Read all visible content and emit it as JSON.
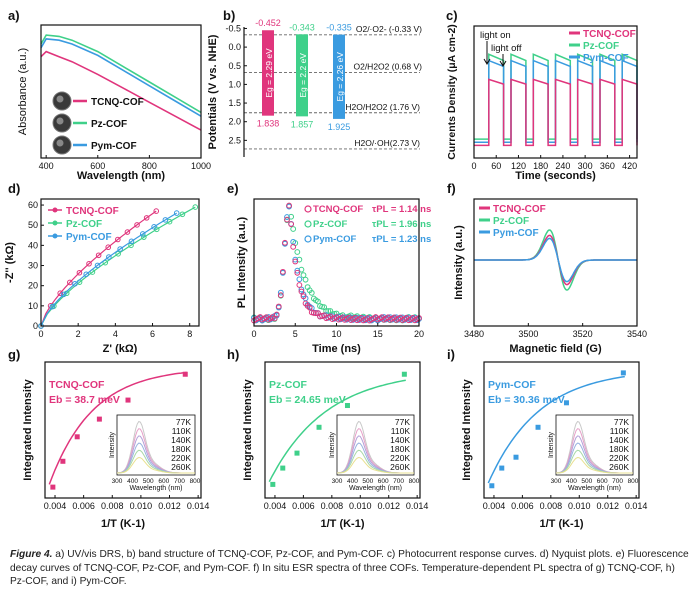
{
  "colors": {
    "tcnq": "#e0357c",
    "pz": "#3fd08a",
    "pym": "#3a9be0",
    "dash": "#666666"
  },
  "caption": {
    "label": "Figure 4.",
    "text": " a) UV/vis DRS, b) band structure of TCNQ-COF, Pz-COF, and Pym-COF. c) Photocurrent response curves. d) Nyquist plots. e) Fluorescence decay curves of TCNQ-COF, Pz-COF, and Pym-COF. f) In situ ESR spectra of three COFs. Temperature-dependent PL spectra of g) TCNQ-COF, h) Pz-COF, and i) Pym-COF."
  },
  "chart_data": [
    {
      "id": "a",
      "panel_label": "a)",
      "type": "line",
      "xlabel": "Wavelength (nm)",
      "ylabel": "Absorbance (a.u.)",
      "xlim": [
        380,
        1000
      ],
      "xticks": [
        400,
        600,
        800,
        1000
      ],
      "legend": [
        "TCNQ-COF",
        "Pz-COF",
        "Pym-COF"
      ],
      "series": [
        {
          "name": "Pz-COF",
          "x": [
            380,
            400,
            450,
            500,
            600,
            700,
            800,
            900,
            1000
          ],
          "y": [
            0.9,
            0.97,
            0.96,
            0.93,
            0.84,
            0.72,
            0.6,
            0.48,
            0.36
          ]
        },
        {
          "name": "Pym-COF",
          "x": [
            380,
            400,
            450,
            500,
            600,
            700,
            800,
            900,
            1000
          ],
          "y": [
            0.87,
            0.94,
            0.93,
            0.9,
            0.81,
            0.69,
            0.57,
            0.45,
            0.33
          ]
        },
        {
          "name": "TCNQ-COF",
          "x": [
            380,
            400,
            450,
            500,
            600,
            700,
            800,
            900,
            1000
          ],
          "y": [
            0.8,
            0.84,
            0.8,
            0.76,
            0.66,
            0.55,
            0.44,
            0.33,
            0.22
          ]
        }
      ]
    },
    {
      "id": "b",
      "panel_label": "b)",
      "type": "bar",
      "ylabel": "Potentials (V vs. NHE)",
      "ylim": [
        -0.7,
        3.0
      ],
      "yticks": [
        "-0.5",
        "0.0",
        "0.5",
        "1.0",
        "1.5",
        "2.0",
        "2.5"
      ],
      "bands": [
        {
          "name": "TCNQ-COF",
          "cb": "-0.452",
          "vb": "1.838",
          "cb_value": -0.452,
          "vb_value": 1.838,
          "eg": "Eg = 2.29 eV"
        },
        {
          "name": "Pz-COF",
          "cb": "-0.343",
          "vb": "1.857",
          "cb_value": -0.343,
          "vb_value": 1.857,
          "eg": "Eg = 2.2 eV"
        },
        {
          "name": "Pym-COF",
          "cb": "-0.335",
          "vb": "1.925",
          "cb_value": -0.335,
          "vb_value": 1.925,
          "eg": "Eg = 2.26 eV"
        }
      ],
      "references": [
        {
          "label": "O2/·O2- (-0.33 V)",
          "value": -0.33
        },
        {
          "label": "O2/H2O2 (0.68 V)",
          "value": 0.68
        },
        {
          "label": "H2O/H2O2 (1.76 V)",
          "value": 1.76
        },
        {
          "label": "H2O/·OH(2.73 V)",
          "value": 2.73
        }
      ]
    },
    {
      "id": "c",
      "panel_label": "c)",
      "type": "line",
      "xlabel": "Time (seconds)",
      "ylabel": "Currents Density (μA cm-2)",
      "xlim": [
        0,
        440
      ],
      "xticks": [
        0,
        60,
        120,
        180,
        240,
        300,
        360,
        420
      ],
      "ylim": [
        0,
        0.42
      ],
      "annotations": [
        "light on",
        "light off"
      ],
      "legend": [
        "TCNQ-COF",
        "Pz-COF",
        "Pym-COF"
      ],
      "on_periods": [
        [
          40,
          80
        ],
        [
          100,
          140
        ],
        [
          160,
          200
        ],
        [
          220,
          260
        ],
        [
          280,
          320
        ],
        [
          340,
          380
        ],
        [
          400,
          440
        ]
      ],
      "series": [
        {
          "name": "Pz-COF",
          "on": 0.33,
          "off": 0.06
        },
        {
          "name": "Pym-COF",
          "on": 0.31,
          "off": 0.05
        },
        {
          "name": "TCNQ-COF",
          "on": 0.25,
          "off": 0.04
        }
      ]
    },
    {
      "id": "d",
      "panel_label": "d)",
      "type": "scatter",
      "xlabel": "Z' (kΩ)",
      "ylabel": "-Z'' (kΩ)",
      "xlim": [
        0,
        8.5
      ],
      "ylim": [
        0,
        63
      ],
      "xticks": [
        0,
        2,
        4,
        6,
        8
      ],
      "yticks": [
        0,
        10,
        20,
        30,
        40,
        50,
        60
      ],
      "legend": [
        "TCNQ-COF",
        "Pz-COF",
        "Pym-COF"
      ],
      "series": [
        {
          "name": "TCNQ-COF",
          "xmax": 6.2,
          "ymax": 57,
          "k": 0.7
        },
        {
          "name": "Pz-COF",
          "xmax": 8.3,
          "ymax": 59,
          "k": 0.72
        },
        {
          "name": "Pym-COF",
          "xmax": 7.3,
          "ymax": 56,
          "k": 0.71
        }
      ]
    },
    {
      "id": "e",
      "panel_label": "e)",
      "type": "scatter",
      "xlabel": "Time (ns)",
      "ylabel": "PL Intensity (a.u.)",
      "xlim": [
        0,
        20
      ],
      "xticks": [
        0,
        5,
        10,
        15,
        20
      ],
      "legend": [
        {
          "name": "TCNQ-COF",
          "tau": "τPL = 1.14 ns",
          "value": 1.14
        },
        {
          "name": "Pz-COF",
          "tau": "τPL = 1.96 ns",
          "value": 1.96
        },
        {
          "name": "Pym-COF",
          "tau": "τPL = 1.23 ns",
          "value": 1.23
        }
      ]
    },
    {
      "id": "f",
      "panel_label": "f)",
      "type": "line",
      "xlabel": "Magnetic field (G)",
      "ylabel": "Intensity (a.u.)",
      "xlim": [
        3480,
        3540
      ],
      "xticks": [
        3480,
        3500,
        3520,
        3540
      ],
      "legend": [
        "TCNQ-COF",
        "Pz-COF",
        "Pym-COF"
      ],
      "center": 3511,
      "series": [
        {
          "name": "Pz-COF",
          "amplitude": 1.0
        },
        {
          "name": "TCNQ-COF",
          "amplitude": 0.82
        },
        {
          "name": "Pym-COF",
          "amplitude": 0.72
        }
      ]
    },
    {
      "id": "g",
      "panel_label": "g)",
      "type": "scatter",
      "sample": "TCNQ-COF",
      "eb": "Eb = 38.7 meV",
      "eb_value": 38.7,
      "xlabel": "1/T (K-1)",
      "ylabel": "Integrated Intensity",
      "xlim": [
        0.0033,
        0.0142
      ],
      "xticks": [
        "0.004",
        "0.006",
        "0.008",
        "0.010",
        "0.012",
        "0.014"
      ],
      "points": [
        {
          "x": 0.00385,
          "y": 0.08
        },
        {
          "x": 0.00455,
          "y": 0.27
        },
        {
          "x": 0.00555,
          "y": 0.45
        },
        {
          "x": 0.0071,
          "y": 0.58
        },
        {
          "x": 0.0091,
          "y": 0.72
        },
        {
          "x": 0.0131,
          "y": 0.91
        }
      ],
      "fit": {
        "a": 0.1,
        "b": 0.86,
        "k": 330
      },
      "inset": {
        "xlabel": "Wavelength (nm)",
        "ylabel": "Intensity",
        "xticks": [
          "300",
          "400",
          "500",
          "600",
          "700",
          "800"
        ],
        "temps": [
          "77K",
          "110K",
          "140K",
          "180K",
          "220K",
          "260K"
        ],
        "colors": [
          "#c9c9c9",
          "#e6a0c8",
          "#b4a0d8",
          "#98b4e0",
          "#a8d8a8",
          "#e8e090"
        ]
      }
    },
    {
      "id": "h",
      "panel_label": "h)",
      "type": "scatter",
      "sample": "Pz-COF",
      "eb": "Eb = 24.65 meV",
      "eb_value": 24.65,
      "xlabel": "1/T (K-1)",
      "ylabel": "Integrated Intensity",
      "xlim": [
        0.0033,
        0.0142
      ],
      "xticks": [
        "0.004",
        "0.006",
        "0.008",
        "0.010",
        "0.012",
        "0.014"
      ],
      "points": [
        {
          "x": 0.00385,
          "y": 0.1
        },
        {
          "x": 0.00455,
          "y": 0.22
        },
        {
          "x": 0.00555,
          "y": 0.33
        },
        {
          "x": 0.0071,
          "y": 0.52
        },
        {
          "x": 0.0091,
          "y": 0.68
        },
        {
          "x": 0.0131,
          "y": 0.91
        }
      ],
      "fit": {
        "a": 0.12,
        "b": 0.82,
        "k": 250
      },
      "inset": {
        "xlabel": "Wavelength (nm)",
        "ylabel": "Intensity",
        "xticks": [
          "300",
          "400",
          "500",
          "600",
          "700",
          "800"
        ],
        "temps": [
          "77K",
          "110K",
          "140K",
          "180K",
          "220K",
          "260K"
        ],
        "colors": [
          "#c9c9c9",
          "#e6a0c8",
          "#b4a0d8",
          "#98b4e0",
          "#a8d8a8",
          "#e8e090"
        ]
      }
    },
    {
      "id": "i",
      "panel_label": "i)",
      "type": "scatter",
      "sample": "Pym-COF",
      "eb": "Eb = 30.36 meV",
      "eb_value": 30.36,
      "xlabel": "1/T (K-1)",
      "ylabel": "Integrated Intensity",
      "xlim": [
        0.0033,
        0.0142
      ],
      "xticks": [
        "0.004",
        "0.006",
        "0.008",
        "0.010",
        "0.012",
        "0.014"
      ],
      "points": [
        {
          "x": 0.00385,
          "y": 0.09
        },
        {
          "x": 0.00455,
          "y": 0.22
        },
        {
          "x": 0.00555,
          "y": 0.3
        },
        {
          "x": 0.0071,
          "y": 0.52
        },
        {
          "x": 0.0091,
          "y": 0.7
        },
        {
          "x": 0.0131,
          "y": 0.92
        }
      ],
      "fit": {
        "a": 0.11,
        "b": 0.84,
        "k": 280
      },
      "inset": {
        "xlabel": "Wavelength (nm)",
        "ylabel": "Intensity",
        "xticks": [
          "300",
          "400",
          "500",
          "600",
          "700",
          "800"
        ],
        "temps": [
          "77K",
          "110K",
          "140K",
          "180K",
          "220K",
          "260K"
        ],
        "colors": [
          "#c9c9c9",
          "#e6a0c8",
          "#b4a0d8",
          "#98b4e0",
          "#a8d8a8",
          "#e8e090"
        ]
      }
    }
  ]
}
